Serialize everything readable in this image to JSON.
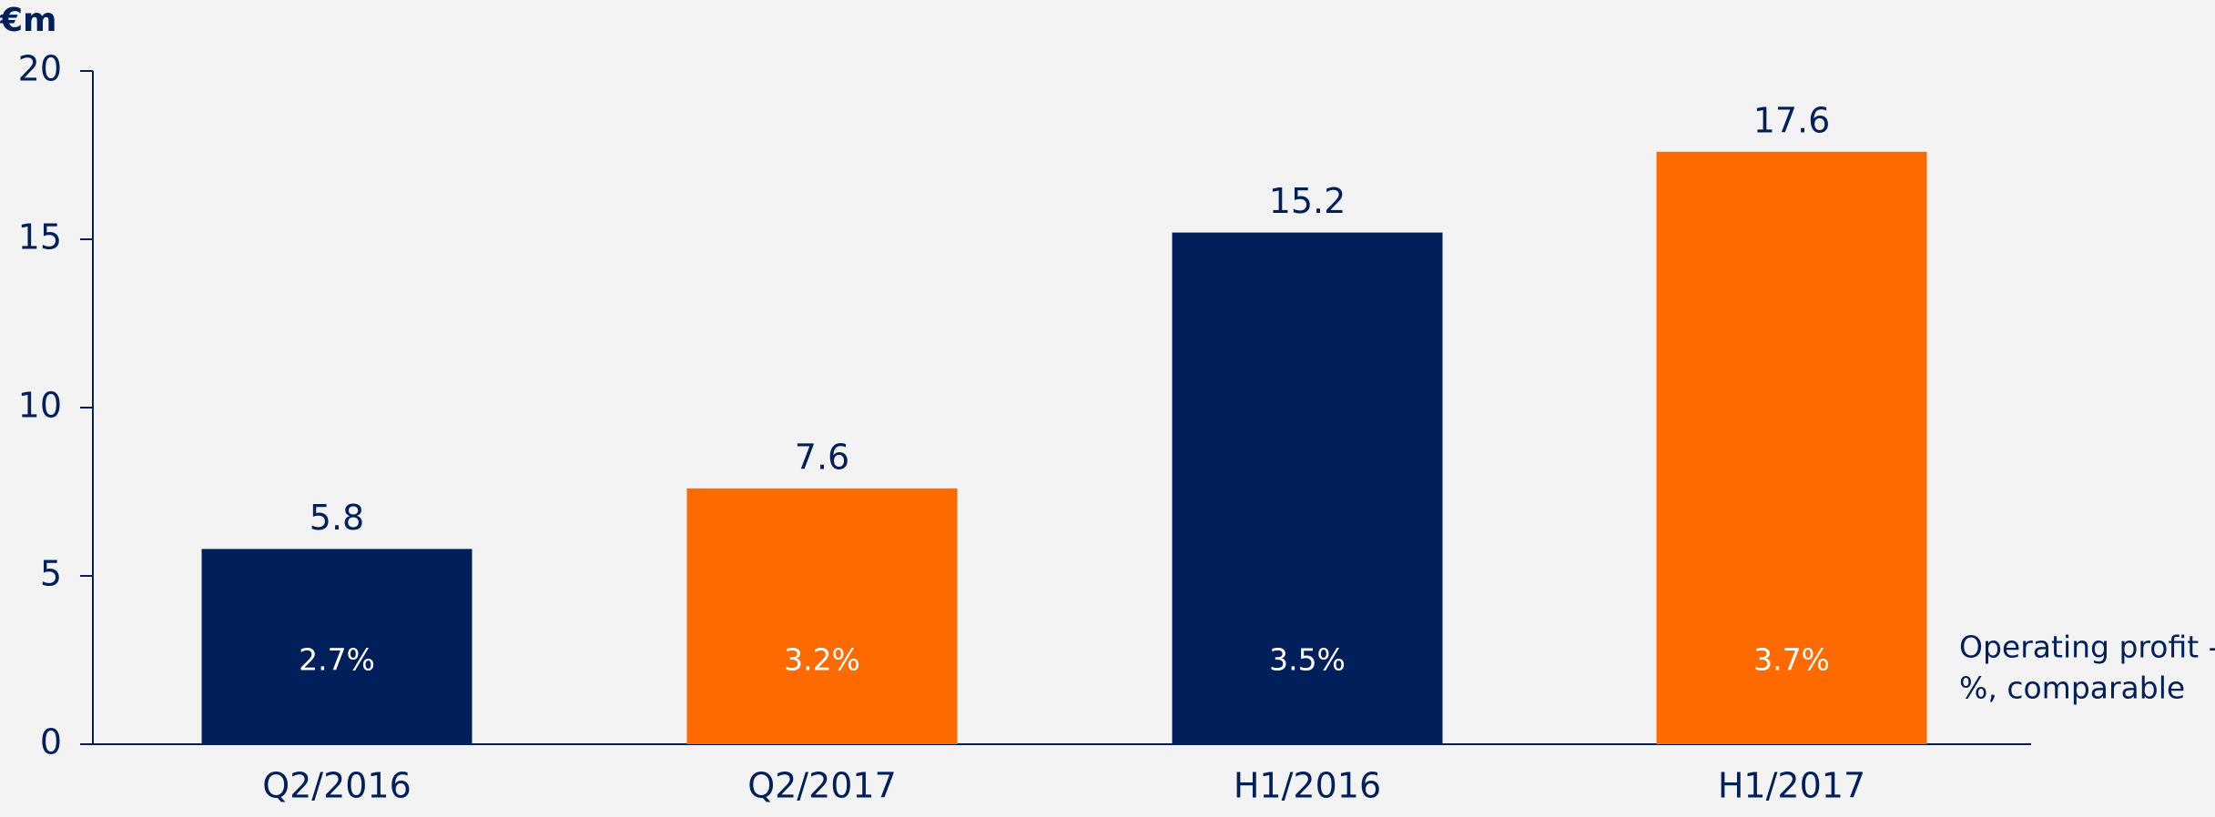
{
  "chart_data": {
    "type": "bar",
    "y_label": "€m",
    "categories": [
      "Q2/2016",
      "Q2/2017",
      "H1/2016",
      "H1/2017"
    ],
    "values": [
      5.8,
      7.6,
      15.2,
      17.6
    ],
    "colors": [
      "#001f5b",
      "#ff6a00",
      "#001f5b",
      "#ff6a00"
    ],
    "ylim": [
      0,
      20
    ],
    "yticks": [
      0,
      5,
      10,
      15,
      20
    ],
    "grid": false,
    "margin": {
      "name": [
        "Operating profit -",
        "%, comparable"
      ],
      "values": [
        2.7,
        3.2,
        3.5,
        3.7
      ],
      "value_labels": [
        "2.7%",
        "3.2%",
        "3.5%",
        "3.7%"
      ]
    }
  }
}
